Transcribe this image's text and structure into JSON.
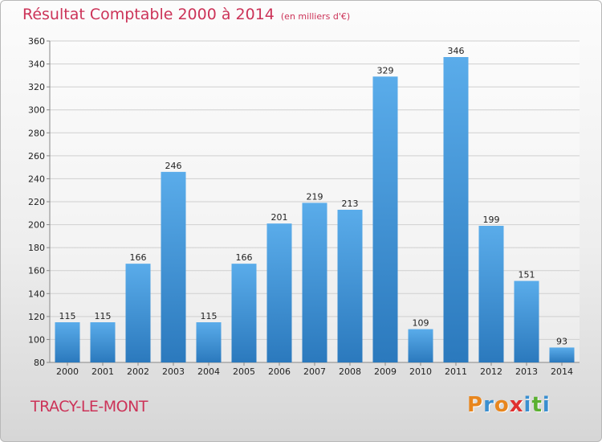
{
  "header": {
    "title": "Résultat Comptable 2000 à 2014",
    "subtitle": "(en milliers d'€)"
  },
  "footer": {
    "commune": "TRACY-LE-MONT",
    "logo_letters": [
      "P",
      "r",
      "o",
      "x",
      "i",
      "t",
      "i"
    ]
  },
  "colors": {
    "title": "#cc3358",
    "bar_top": "#5aacea",
    "bar_bottom": "#2b79bd",
    "logo": [
      "#e8861e",
      "#3a8fd0",
      "#e8861e",
      "#e03030",
      "#3a8fd0",
      "#5ab030",
      "#3a8fd0"
    ]
  },
  "chart_data": {
    "type": "bar",
    "categories": [
      "2000",
      "2001",
      "2002",
      "2003",
      "2004",
      "2005",
      "2006",
      "2007",
      "2008",
      "2009",
      "2010",
      "2011",
      "2012",
      "2013",
      "2014"
    ],
    "values": [
      115,
      115,
      166,
      246,
      115,
      166,
      201,
      219,
      213,
      329,
      109,
      346,
      199,
      151,
      93
    ],
    "ylim": [
      80,
      360
    ],
    "yticks": [
      80,
      100,
      120,
      140,
      160,
      180,
      200,
      220,
      240,
      260,
      280,
      300,
      320,
      340,
      360
    ],
    "grid": true,
    "data_labels": true,
    "legend": "none"
  }
}
